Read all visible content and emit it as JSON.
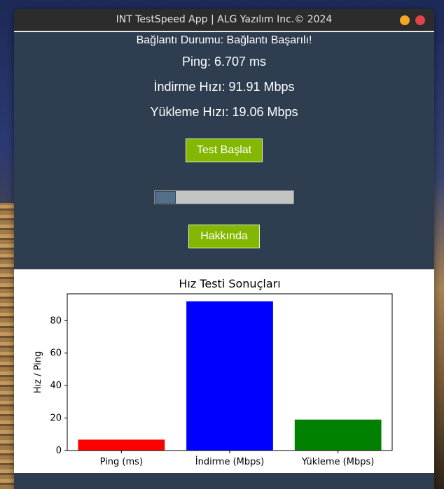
{
  "window": {
    "title": "INT TestSpeed App | ALG Yazılım Inc.© 2024",
    "colors": {
      "minimize": "#f5a623",
      "close": "#e0444a",
      "background": "#2e3e50"
    }
  },
  "status": {
    "text": "Bağlantı Durumu: Bağlantı Başarılı!"
  },
  "results": {
    "ping": "Ping: 6.707 ms",
    "download": "İndirme Hızı: 91.91 Mbps",
    "upload": "Yükleme Hızı: 19.06 Mbps"
  },
  "buttons": {
    "start": "Test Başlat",
    "about": "Hakkında",
    "color": "#84b800"
  },
  "progress": {
    "value": 0.15
  },
  "chart_data": {
    "type": "bar",
    "title": "Hız Testi Sonuçları",
    "xlabel": "",
    "ylabel": "Hız / Ping",
    "categories": [
      "Ping (ms)",
      "İndirme (Mbps)",
      "Yükleme (Mbps)"
    ],
    "values": [
      6.707,
      91.91,
      19.06
    ],
    "colors": [
      "#ff0000",
      "#0000ff",
      "#008000"
    ],
    "ylim": [
      0,
      96.5
    ],
    "yticks": [
      0,
      20,
      40,
      60,
      80
    ],
    "grid": false
  }
}
